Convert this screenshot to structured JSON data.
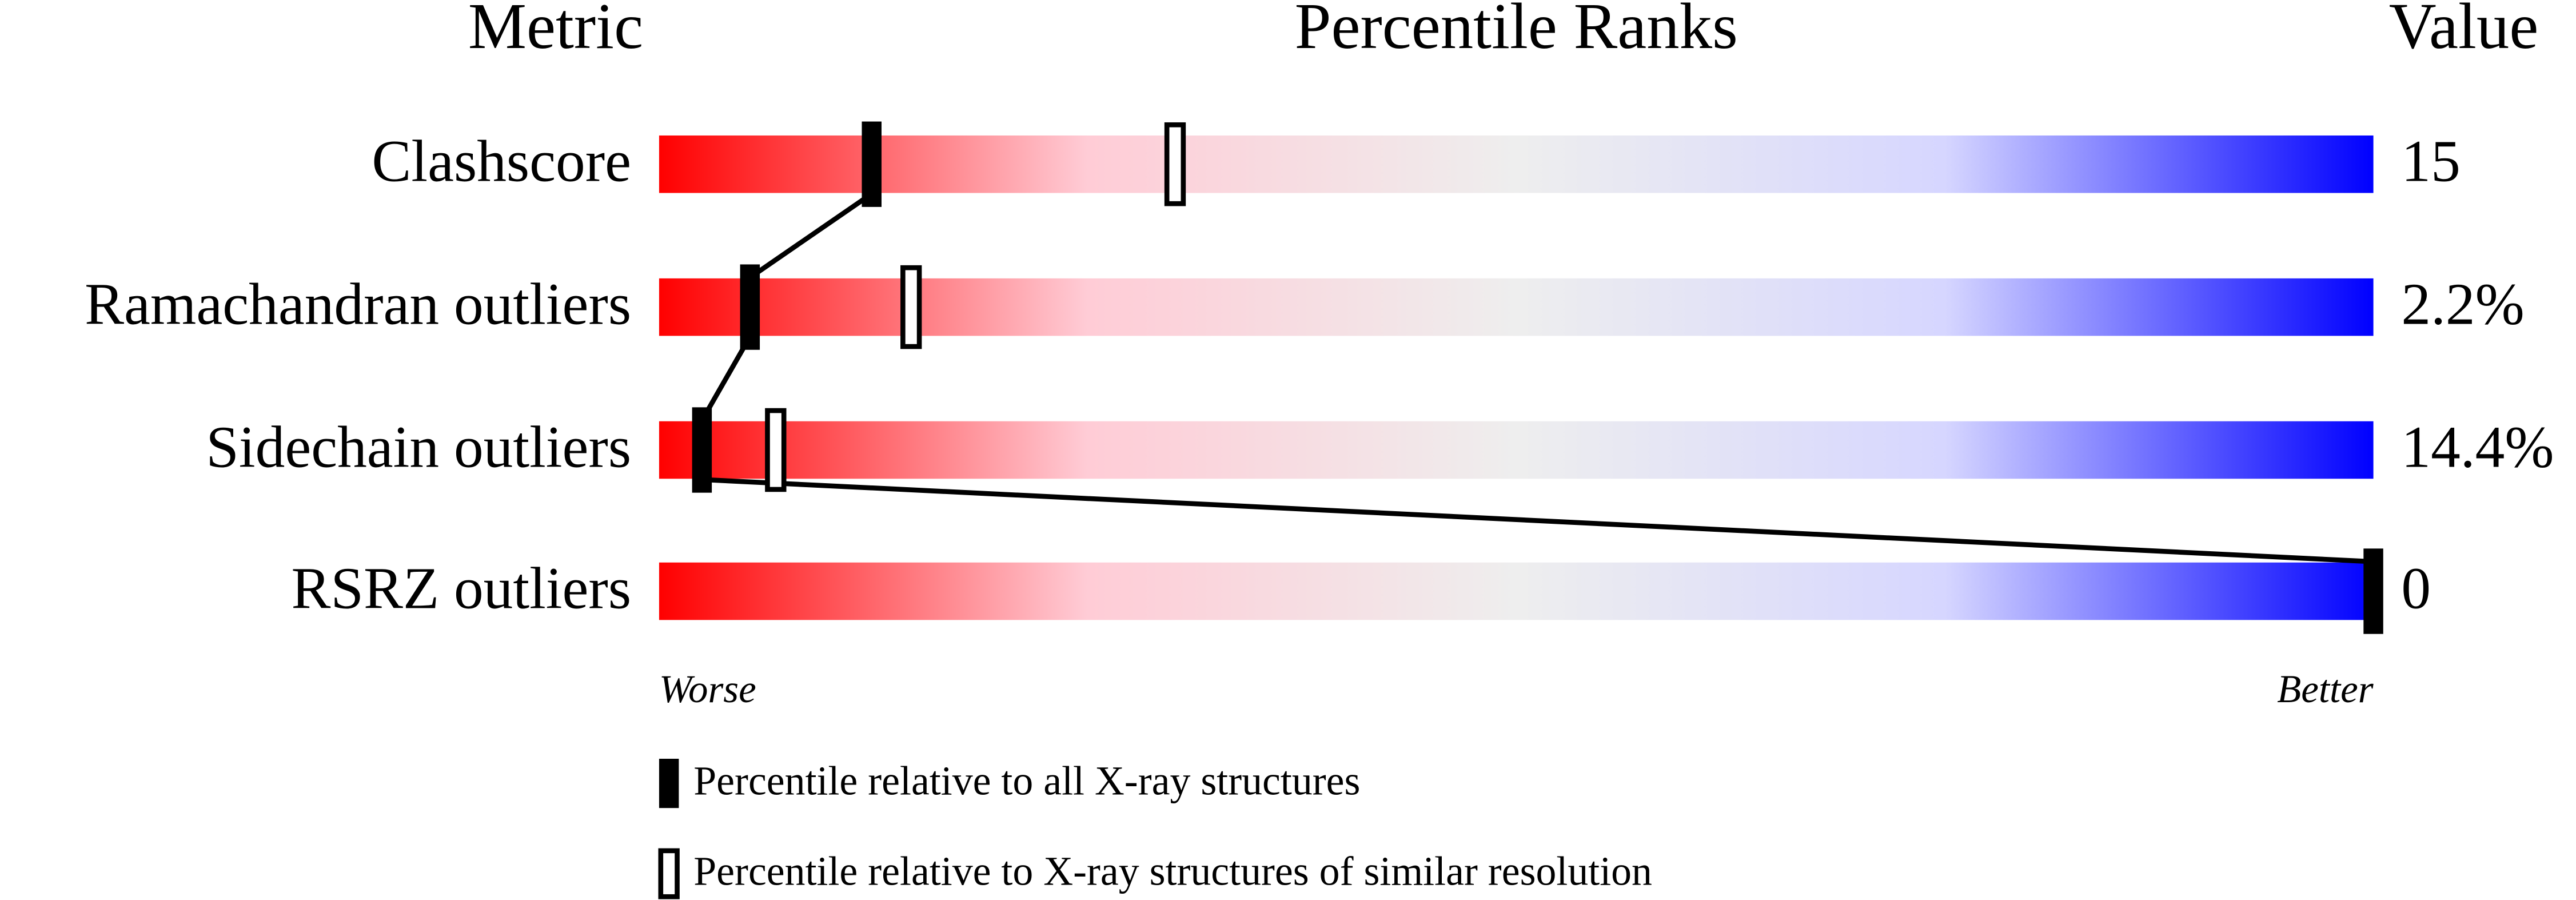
{
  "chart_data": {
    "type": "percentile-slider",
    "headers": [
      "Metric",
      "Percentile Ranks",
      "Value"
    ],
    "categories": [
      "Clashscore",
      "Ramachandran outliers",
      "Sidechain outliers",
      "RSRZ outliers"
    ],
    "value_column": [
      "15",
      "2.2%",
      "14.4%",
      "0"
    ],
    "xlim": [
      0,
      100
    ],
    "x_end_labels": [
      "Worse",
      "Better"
    ],
    "gradient_colors": [
      "#ff0000",
      "#ffccd6",
      "#eeeeee",
      "#d6d6ff",
      "#0000ff"
    ],
    "series": [
      {
        "name": "Percentile relative to all X-ray structures",
        "style": "filled",
        "color": "#000000",
        "values": [
          12.4,
          5.3,
          2.5,
          100
        ]
      },
      {
        "name": "Percentile relative to X-ray structures of similar resolution",
        "style": "open",
        "color": "#000000",
        "values": [
          30.1,
          14.7,
          6.8,
          null
        ]
      }
    ]
  }
}
